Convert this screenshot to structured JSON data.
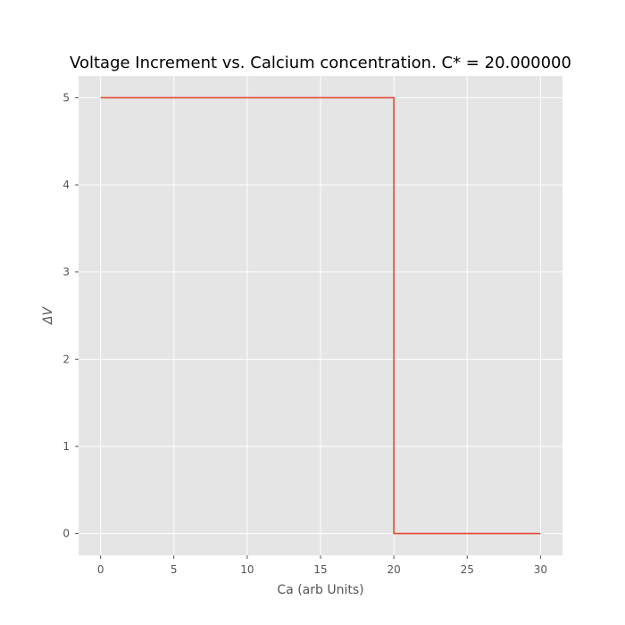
{
  "chart_data": {
    "type": "line",
    "title": "Voltage Increment vs. Calcium concentration. C* = 20.000000",
    "xlabel": "Ca (arb Units)",
    "ylabel": "ΔV",
    "xlim": [
      -1.5,
      31.5
    ],
    "ylim": [
      -0.25,
      5.25
    ],
    "xticks": [
      0,
      5,
      10,
      15,
      20,
      25,
      30
    ],
    "yticks": [
      0,
      1,
      2,
      3,
      4,
      5
    ],
    "xtick_labels": [
      "0",
      "5",
      "10",
      "15",
      "20",
      "25",
      "30"
    ],
    "ytick_labels": [
      "0",
      "1",
      "2",
      "3",
      "4",
      "5"
    ],
    "grid": true,
    "series": [
      {
        "color": "#e24a33",
        "x": [
          0,
          20,
          20,
          30
        ],
        "y": [
          5,
          5,
          0,
          0
        ]
      }
    ],
    "colors": {
      "plot_background": "#e5e5e5",
      "grid": "#ffffff",
      "tick_text": "#555555",
      "title_text": "#000000"
    }
  }
}
